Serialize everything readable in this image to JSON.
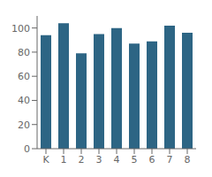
{
  "chart_data": {
    "type": "bar",
    "categories": [
      "K",
      "1",
      "2",
      "3",
      "4",
      "5",
      "6",
      "7",
      "8"
    ],
    "values": [
      94,
      104,
      79,
      95,
      100,
      87,
      89,
      102,
      96
    ],
    "color": "#2d6584",
    "ylim": [
      0,
      110
    ],
    "yticks": [
      0,
      20,
      40,
      60,
      80,
      100
    ],
    "grid": false
  }
}
